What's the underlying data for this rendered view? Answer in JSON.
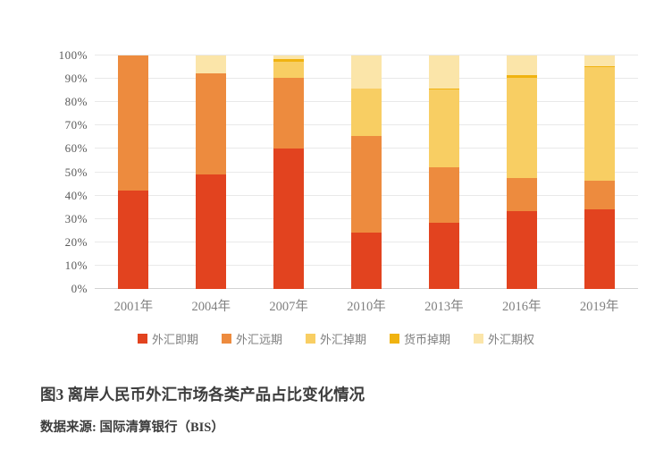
{
  "chart_data": {
    "type": "bar",
    "stacked": true,
    "percent": true,
    "title": "",
    "categories": [
      "2001年",
      "2004年",
      "2007年",
      "2010年",
      "2013年",
      "2016年",
      "2019年"
    ],
    "series": [
      {
        "id": "fx-spot",
        "name": "外汇即期",
        "color": "#e2431f",
        "values": [
          42,
          49,
          60,
          24,
          28.5,
          33.5,
          34
        ]
      },
      {
        "id": "fx-forward",
        "name": "外汇远期",
        "color": "#ed8b3e",
        "values": [
          58,
          43.5,
          30.5,
          41.5,
          23.5,
          14,
          12.5
        ]
      },
      {
        "id": "fx-swap",
        "name": "外汇掉期",
        "color": "#f8ce63",
        "values": [
          0,
          0,
          7,
          20.5,
          33.5,
          43,
          48.5
        ]
      },
      {
        "id": "currency-swap",
        "name": "货币掉期",
        "color": "#f0b310",
        "values": [
          0,
          0,
          1,
          0,
          0.5,
          1,
          0.5
        ]
      },
      {
        "id": "fx-option",
        "name": "外汇期权",
        "color": "#fbe5a9",
        "values": [
          0,
          7.5,
          1.5,
          14,
          14,
          8.5,
          4.5
        ]
      }
    ],
    "y_ticks": [
      "0%",
      "10%",
      "20%",
      "30%",
      "40%",
      "50%",
      "60%",
      "70%",
      "80%",
      "90%",
      "100%"
    ],
    "ylim": [
      0,
      100
    ],
    "grid": true,
    "legend_position": "bottom"
  },
  "caption": {
    "title": "图3  离岸人民币外汇市场各类产品占比变化情况",
    "source": "数据来源: 国际清算银行（BIS）"
  }
}
